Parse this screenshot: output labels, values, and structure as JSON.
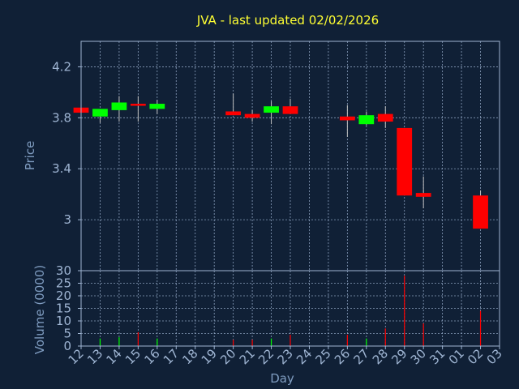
{
  "chart_data": [
    {
      "type": "candlestick",
      "title": "JVA - last updated 02/02/2026",
      "ylabel": "Price",
      "ylim": [
        2.6,
        4.4
      ],
      "yticks": [
        3,
        3.4,
        3.8,
        4.2
      ],
      "grid": true,
      "candles": [
        {
          "x": 0,
          "open": 3.88,
          "high": 3.89,
          "low": 3.84,
          "close": 3.84
        },
        {
          "x": 1,
          "open": 3.81,
          "high": 3.87,
          "low": 3.76,
          "close": 3.87
        },
        {
          "x": 2,
          "open": 3.86,
          "high": 3.97,
          "low": 3.77,
          "close": 3.92
        },
        {
          "x": 3,
          "open": 3.91,
          "high": 3.97,
          "low": 3.77,
          "close": 3.9
        },
        {
          "x": 4,
          "open": 3.87,
          "high": 3.94,
          "low": 3.83,
          "close": 3.91
        },
        {
          "x": 8,
          "open": 3.85,
          "high": 3.99,
          "low": 3.82,
          "close": 3.82
        },
        {
          "x": 9,
          "open": 3.83,
          "high": 3.86,
          "low": 3.77,
          "close": 3.8
        },
        {
          "x": 10,
          "open": 3.84,
          "high": 3.93,
          "low": 3.75,
          "close": 3.89
        },
        {
          "x": 11,
          "open": 3.89,
          "high": 3.95,
          "low": 3.83,
          "close": 3.83
        },
        {
          "x": 14,
          "open": 3.81,
          "high": 3.9,
          "low": 3.65,
          "close": 3.78
        },
        {
          "x": 15,
          "open": 3.75,
          "high": 3.85,
          "low": 3.74,
          "close": 3.82
        },
        {
          "x": 16,
          "open": 3.83,
          "high": 3.89,
          "low": 3.72,
          "close": 3.77
        },
        {
          "x": 17,
          "open": 3.72,
          "high": 3.72,
          "low": 3.19,
          "close": 3.19
        },
        {
          "x": 18,
          "open": 3.21,
          "high": 3.34,
          "low": 3.09,
          "close": 3.18
        },
        {
          "x": 21,
          "open": 3.19,
          "high": 3.23,
          "low": 2.93,
          "close": 2.93
        }
      ],
      "up_color": "#00ff00",
      "down_color": "#ff0000",
      "wick_color": "#c0c0c0"
    },
    {
      "type": "bar",
      "xlabel": "Day",
      "ylabel": "Volume (0000)",
      "ylim": [
        0,
        30
      ],
      "yticks": [
        0,
        5,
        10,
        15,
        20,
        25,
        30
      ],
      "grid": true,
      "categories": [
        "12",
        "13",
        "14",
        "15",
        "16",
        "17",
        "18",
        "19",
        "20",
        "21",
        "22",
        "23",
        "24",
        "25",
        "26",
        "27",
        "28",
        "29",
        "30",
        "31",
        "01",
        "02",
        "03"
      ],
      "bars": [
        {
          "x": 1,
          "value": 3,
          "color": "#00ff00"
        },
        {
          "x": 2,
          "value": 3.5,
          "color": "#00ff00"
        },
        {
          "x": 3,
          "value": 5.5,
          "color": "#ff0000"
        },
        {
          "x": 4,
          "value": 3,
          "color": "#00ff00"
        },
        {
          "x": 8,
          "value": 2.5,
          "color": "#ff0000"
        },
        {
          "x": 9,
          "value": 2.5,
          "color": "#ff0000"
        },
        {
          "x": 10,
          "value": 3,
          "color": "#00ff00"
        },
        {
          "x": 11,
          "value": 4.5,
          "color": "#ff0000"
        },
        {
          "x": 14,
          "value": 4.5,
          "color": "#ff0000"
        },
        {
          "x": 15,
          "value": 3,
          "color": "#00ff00"
        },
        {
          "x": 16,
          "value": 7,
          "color": "#ff0000"
        },
        {
          "x": 17,
          "value": 28,
          "color": "#ff0000"
        },
        {
          "x": 18,
          "value": 9,
          "color": "#ff0000"
        },
        {
          "x": 21,
          "value": 14,
          "color": "#ff0000"
        }
      ]
    }
  ]
}
